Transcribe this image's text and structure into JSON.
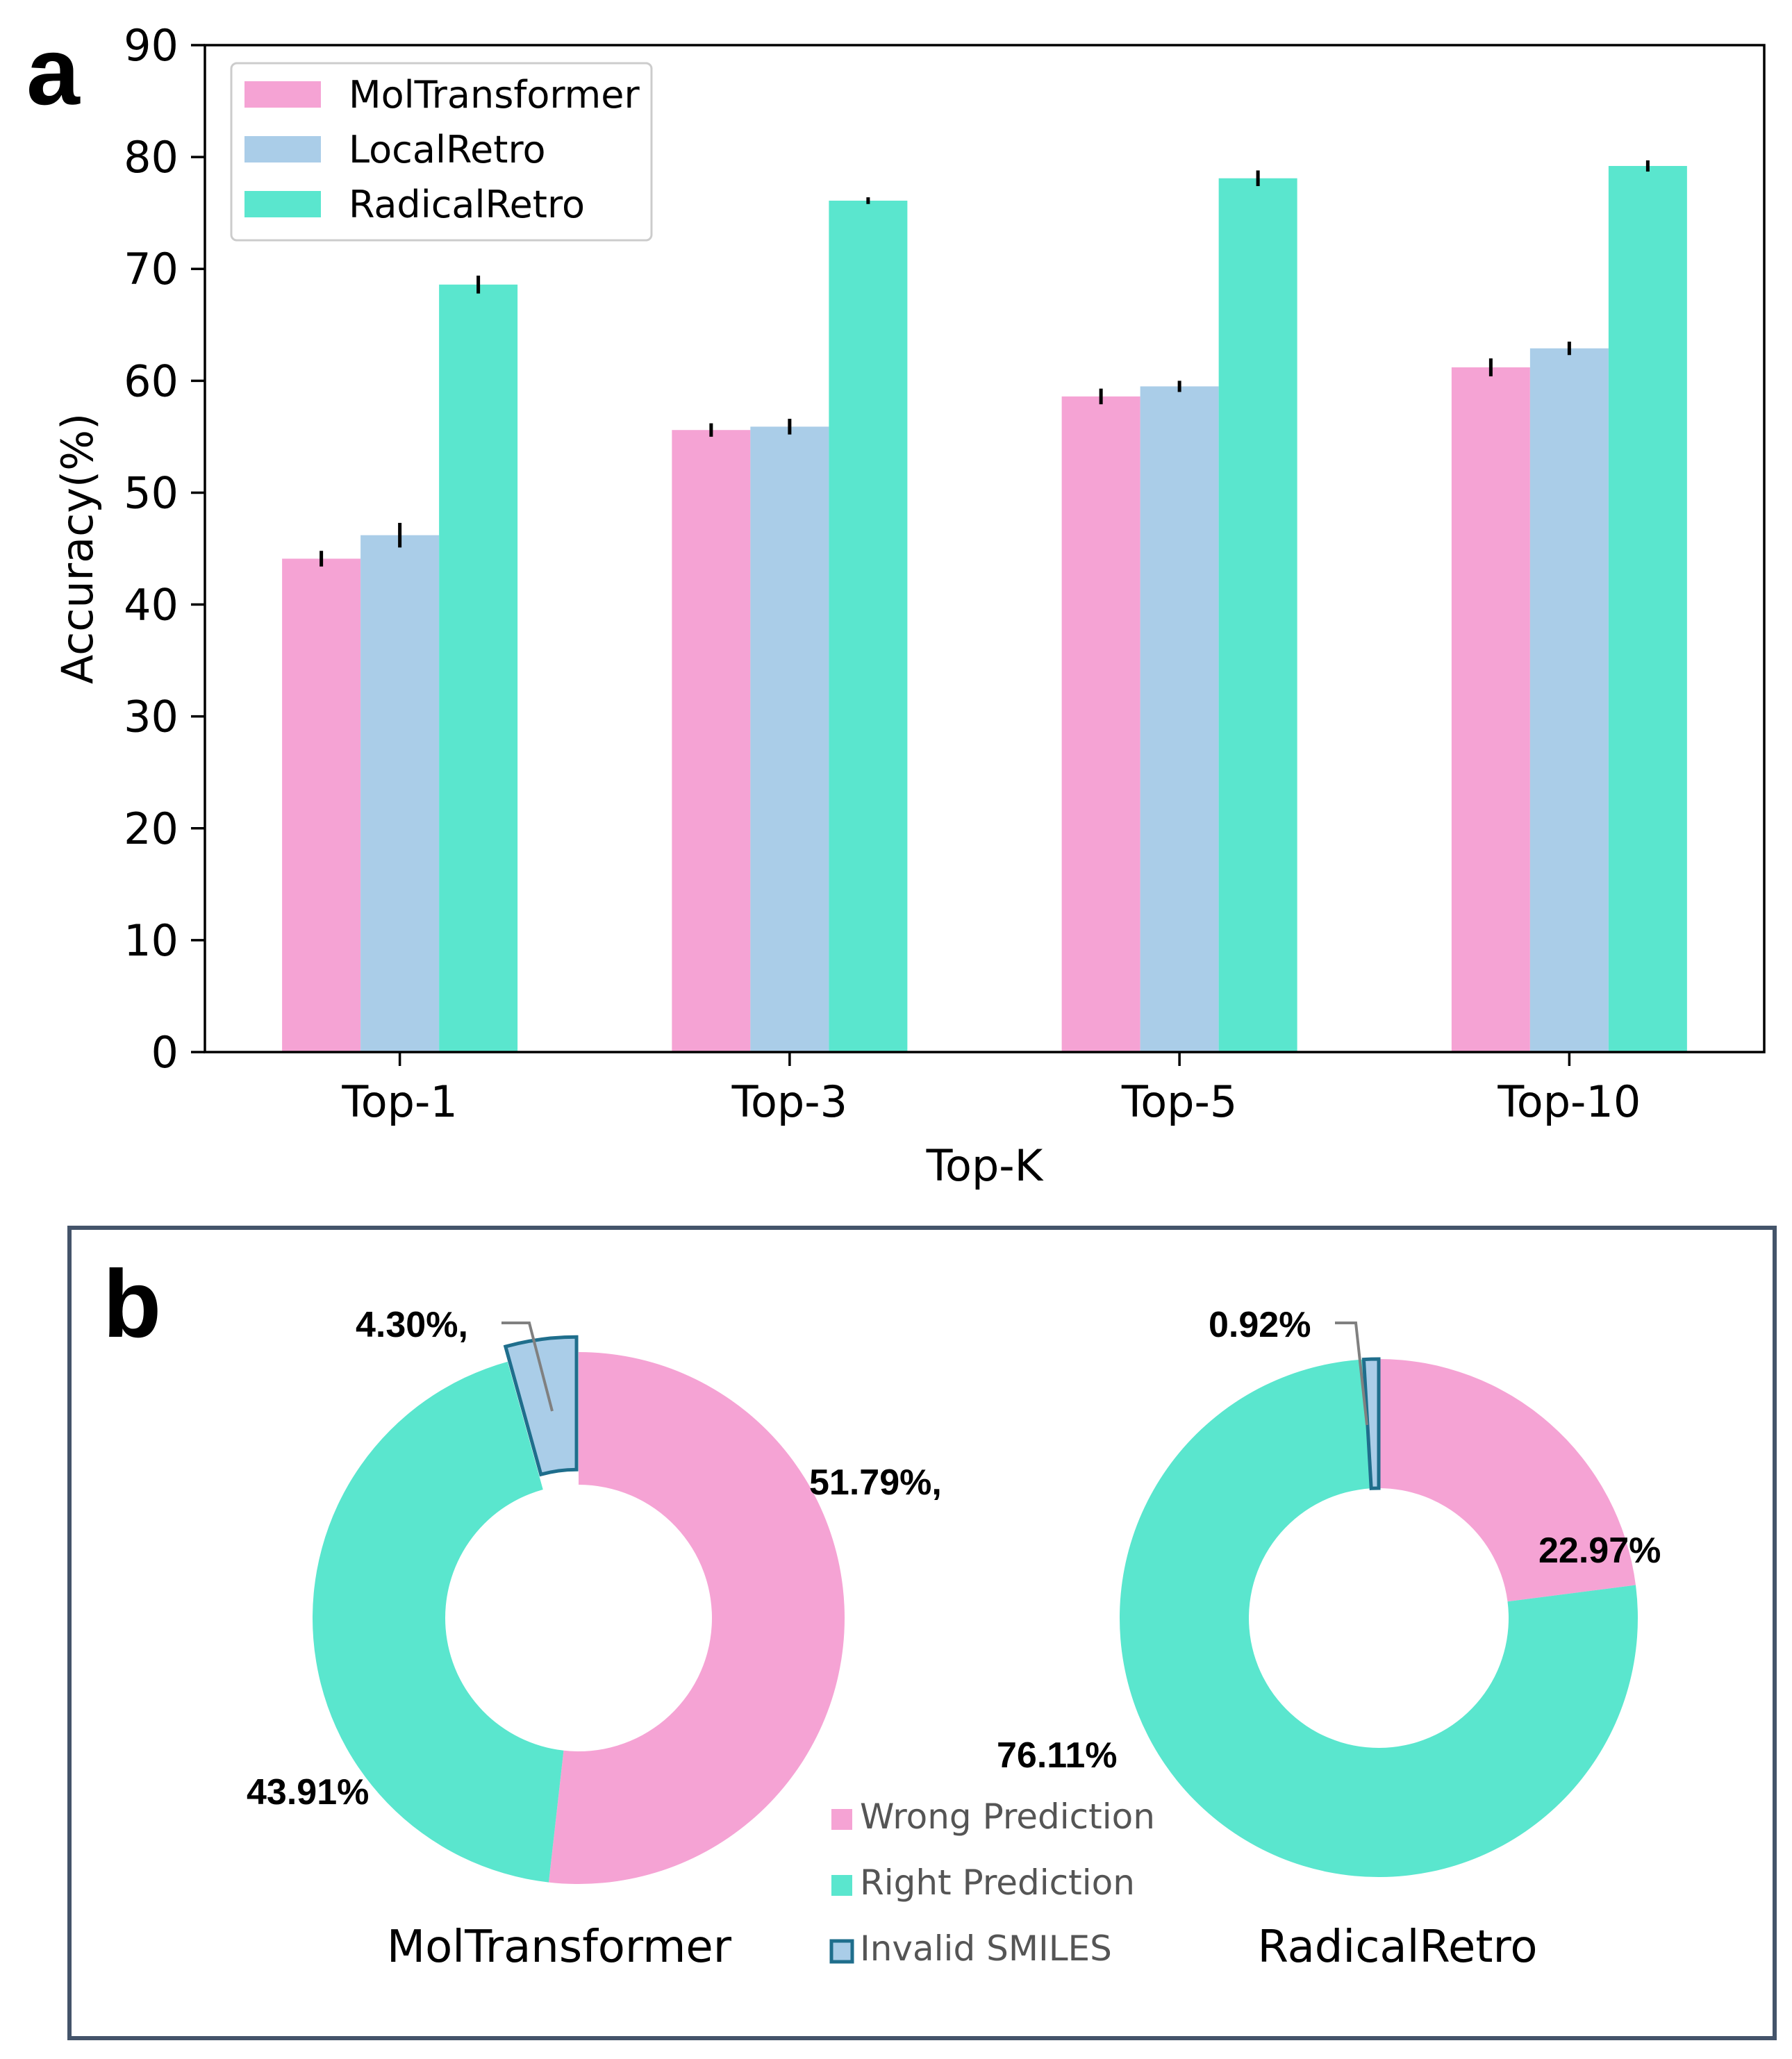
{
  "chart_data": [
    {
      "panel": "a",
      "type": "bar",
      "categories": [
        "Top-1",
        "Top-3",
        "Top-5",
        "Top-10"
      ],
      "series": [
        {
          "name": "MolTransformer",
          "values": [
            44.1,
            55.6,
            58.6,
            61.2
          ],
          "errors": [
            0.7,
            0.6,
            0.7,
            0.8
          ],
          "color": "#F5A3D4"
        },
        {
          "name": "LocalRetro",
          "values": [
            46.2,
            55.9,
            59.5,
            62.9
          ],
          "errors": [
            1.1,
            0.7,
            0.5,
            0.6
          ],
          "color": "#AACDE8"
        },
        {
          "name": "RadicalRetro",
          "values": [
            68.6,
            76.1,
            78.1,
            79.2
          ],
          "errors": [
            0.8,
            0.3,
            0.7,
            0.5
          ],
          "color": "#5AE6CE"
        }
      ],
      "xlabel": "Top-K",
      "ylabel": "Accuracy(%)",
      "ylim": [
        0,
        90
      ],
      "yticks": [
        0,
        10,
        20,
        30,
        40,
        50,
        60,
        70,
        80,
        90
      ],
      "ytick_labels": [
        "0",
        "10",
        "20",
        "30",
        "40",
        "50",
        "60",
        "70",
        "80",
        "90"
      ],
      "legend_placement": "top-left"
    },
    {
      "panel": "b",
      "type": "pie",
      "style": "donut",
      "charts": [
        {
          "name": "MolTransformer",
          "slices": [
            {
              "label": "Wrong Prediction",
              "value": 51.79,
              "display": "51.79%,"
            },
            {
              "label": "Right Prediction",
              "value": 43.91,
              "display": "43.91%"
            },
            {
              "label": "Invalid SMILES",
              "value": 4.3,
              "display": "4.30%,"
            }
          ]
        },
        {
          "name": "RadicalRetro",
          "slices": [
            {
              "label": "Wrong Prediction",
              "value": 22.97,
              "display": "22.97%"
            },
            {
              "label": "Right Prediction",
              "value": 76.11,
              "display": "76.11%"
            },
            {
              "label": "Invalid SMILES",
              "value": 0.92,
              "display": "0.92%"
            }
          ]
        }
      ],
      "legend": [
        {
          "label": "Wrong Prediction",
          "color": "#F5A3D4"
        },
        {
          "label": "Right Prediction",
          "color": "#5AE6CE"
        },
        {
          "label": "Invalid SMILES",
          "color": "#AACDE8",
          "edge": "#1F6E8C"
        }
      ],
      "legend_placement": "bottom-center"
    }
  ],
  "panel_labels": {
    "a": "a",
    "b": "b"
  }
}
